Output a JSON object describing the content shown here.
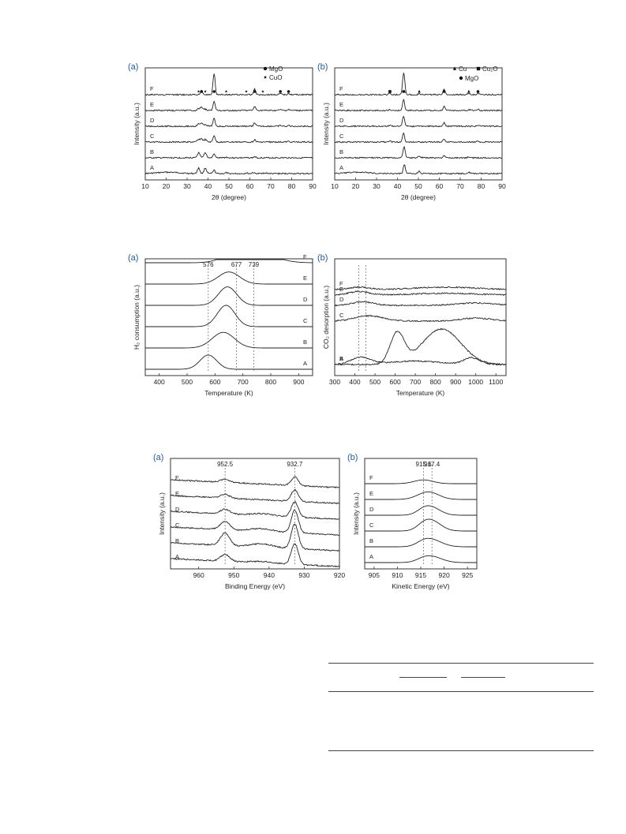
{
  "figures": [
    {
      "panels": [
        {
          "id": "xrd-a",
          "letter": "(a)",
          "legend": [
            {
              "marker": "circle",
              "label": "MgO"
            },
            {
              "marker": "star",
              "label": "CuO"
            }
          ],
          "peak_annotations": [
            {
              "x": 36.9,
              "marker": "circle"
            },
            {
              "x": 42.9,
              "marker": "circle"
            },
            {
              "x": 62.3,
              "marker": "circle"
            },
            {
              "x": 74.6,
              "marker": "circle"
            },
            {
              "x": 78.5,
              "marker": "circle"
            },
            {
              "x": 35.5,
              "marker": "star"
            },
            {
              "x": 38.7,
              "marker": "star"
            },
            {
              "x": 48.7,
              "marker": "star"
            },
            {
              "x": 58.3,
              "marker": "star"
            },
            {
              "x": 66.2,
              "marker": "star"
            }
          ],
          "vlines": [],
          "curve_labels_side": "left"
        },
        {
          "id": "xrd-b",
          "letter": "(b)",
          "legend": [
            {
              "marker": "triangle",
              "label": "Cu"
            },
            {
              "marker": "square",
              "label": "Cu₂O"
            },
            {
              "marker": "circle",
              "label": "MgO"
            }
          ],
          "peak_annotations": [
            {
              "x": 36.4,
              "marker": "square"
            },
            {
              "x": 42.9,
              "marker": "circle"
            },
            {
              "x": 43.3,
              "marker": "triangle"
            },
            {
              "x": 50.4,
              "marker": "triangle"
            },
            {
              "x": 62.3,
              "marker": "circle"
            },
            {
              "x": 74.1,
              "marker": "triangle"
            },
            {
              "x": 78.5,
              "marker": "circle"
            }
          ],
          "vlines": [],
          "curve_labels_side": "left"
        },
        {
          "id": "tpr",
          "letter": "(a)",
          "legend": [],
          "peak_annotations": [],
          "vlines": [
            {
              "x": 576,
              "label": "576"
            },
            {
              "x": 677,
              "label": "677"
            },
            {
              "x": 739,
              "label": "739"
            }
          ],
          "curve_labels_side": "right"
        },
        {
          "id": "co2-tpd",
          "letter": "(b)",
          "legend": [],
          "peak_annotations": [],
          "vlines": [
            {
              "x": 420,
              "label": ""
            },
            {
              "x": 455,
              "label": ""
            }
          ],
          "curve_labels_side": "left"
        },
        {
          "id": "xps",
          "letter": "(a)",
          "legend": [],
          "peak_annotations": [],
          "vlines": [
            {
              "x": 952.5,
              "label": "952.5"
            },
            {
              "x": 932.7,
              "label": "932.7"
            }
          ],
          "curve_labels_side": "left"
        },
        {
          "id": "aes",
          "letter": "(b)",
          "legend": [],
          "peak_annotations": [],
          "vlines": [
            {
              "x": 915.6,
              "label": "915.6"
            },
            {
              "x": 917.4,
              "label": "917.4"
            }
          ],
          "curve_labels_side": "left"
        }
      ]
    }
  ],
  "chart_data": [
    {
      "id": "xrd-a",
      "type": "line",
      "xlabel": "2θ (degree)",
      "ylabel": "Intensity (a.u.)",
      "xlim": [
        10,
        90
      ],
      "xticks": [
        10,
        20,
        30,
        40,
        50,
        60,
        70,
        80,
        90
      ],
      "series": [
        {
          "name": "A",
          "peaks": [
            [
              21,
              0.25,
              5
            ],
            [
              35.5,
              1.0,
              0.6
            ],
            [
              38.7,
              1.0,
              0.6
            ],
            [
              42.9,
              0.6,
              0.5
            ],
            [
              48.7,
              0.15,
              0.5
            ],
            [
              58.3,
              0.12,
              0.5
            ],
            [
              61.5,
              0.2,
              0.5
            ],
            [
              66.2,
              0.12,
              0.5
            ],
            [
              68.1,
              0.1,
              0.5
            ]
          ]
        },
        {
          "name": "B",
          "peaks": [
            [
              35.5,
              0.9,
              0.6
            ],
            [
              38.7,
              0.9,
              0.6
            ],
            [
              42.9,
              0.7,
              0.5
            ],
            [
              48.7,
              0.12,
              0.5
            ],
            [
              62.3,
              0.2,
              0.5
            ]
          ]
        },
        {
          "name": "C",
          "peaks": [
            [
              35.5,
              0.5,
              0.6
            ],
            [
              36.9,
              0.6,
              0.5
            ],
            [
              38.7,
              0.45,
              0.6
            ],
            [
              42.9,
              1.2,
              0.5
            ],
            [
              62.3,
              0.45,
              0.5
            ],
            [
              78.5,
              0.12,
              0.5
            ]
          ]
        },
        {
          "name": "D",
          "peaks": [
            [
              35.5,
              0.4,
              0.6
            ],
            [
              36.9,
              0.6,
              0.5
            ],
            [
              38.7,
              0.35,
              0.6
            ],
            [
              42.9,
              1.4,
              0.5
            ],
            [
              62.3,
              0.6,
              0.5
            ],
            [
              74.6,
              0.12,
              0.5
            ],
            [
              78.5,
              0.15,
              0.5
            ]
          ]
        },
        {
          "name": "E",
          "peaks": [
            [
              35.5,
              0.3,
              0.6
            ],
            [
              36.9,
              0.7,
              0.5
            ],
            [
              38.7,
              0.25,
              0.6
            ],
            [
              42.9,
              1.6,
              0.5
            ],
            [
              62.3,
              0.7,
              0.5
            ],
            [
              74.6,
              0.15,
              0.5
            ],
            [
              78.5,
              0.18,
              0.5
            ]
          ]
        },
        {
          "name": "F",
          "peaks": [
            [
              36.9,
              0.8,
              0.5
            ],
            [
              42.9,
              3.9,
              0.5
            ],
            [
              62.3,
              1.1,
              0.5
            ],
            [
              74.6,
              0.2,
              0.5
            ],
            [
              78.5,
              0.25,
              0.5
            ]
          ]
        }
      ]
    },
    {
      "id": "xrd-b",
      "type": "line",
      "xlabel": "2θ (degree)",
      "ylabel": "Intensity (a.u.)",
      "xlim": [
        10,
        90
      ],
      "xticks": [
        10,
        20,
        30,
        40,
        50,
        60,
        70,
        80,
        90
      ],
      "series": [
        {
          "name": "A",
          "peaks": [
            [
              21,
              0.25,
              5
            ],
            [
              43.3,
              1.6,
              0.5
            ],
            [
              50.4,
              0.5,
              0.5
            ],
            [
              74.1,
              0.25,
              0.5
            ]
          ]
        },
        {
          "name": "B",
          "peaks": [
            [
              42.9,
              0.8,
              0.5
            ],
            [
              43.3,
              1.3,
              0.5
            ],
            [
              50.4,
              0.35,
              0.5
            ],
            [
              62.3,
              0.35,
              0.5
            ],
            [
              74.1,
              0.15,
              0.5
            ]
          ]
        },
        {
          "name": "C",
          "peaks": [
            [
              36.4,
              0.15,
              0.5
            ],
            [
              42.9,
              1.6,
              0.5
            ],
            [
              62.3,
              0.55,
              0.5
            ],
            [
              78.5,
              0.15,
              0.5
            ]
          ]
        },
        {
          "name": "D",
          "peaks": [
            [
              36.4,
              0.12,
              0.5
            ],
            [
              42.9,
              1.8,
              0.5
            ],
            [
              62.3,
              0.65,
              0.5
            ],
            [
              78.5,
              0.18,
              0.5
            ]
          ]
        },
        {
          "name": "E",
          "peaks": [
            [
              36.4,
              0.15,
              0.5
            ],
            [
              42.9,
              2.0,
              0.5
            ],
            [
              62.3,
              0.75,
              0.5
            ],
            [
              74.6,
              0.15,
              0.5
            ],
            [
              78.5,
              0.2,
              0.5
            ]
          ]
        },
        {
          "name": "F",
          "peaks": [
            [
              36.4,
              0.3,
              0.5
            ],
            [
              42.9,
              3.6,
              0.5
            ],
            [
              43.5,
              0.8,
              0.4
            ],
            [
              50.4,
              0.2,
              0.5
            ],
            [
              62.3,
              1.1,
              0.5
            ],
            [
              74.1,
              0.25,
              0.5
            ],
            [
              78.5,
              0.3,
              0.5
            ]
          ]
        }
      ]
    },
    {
      "id": "tpr",
      "type": "line",
      "xlabel": "Temperature (K)",
      "ylabel": "H₂ consumption (a.u.)",
      "xlim": [
        350,
        950
      ],
      "xticks": [
        400,
        500,
        600,
        700,
        800,
        900
      ],
      "series": [
        {
          "name": "A",
          "peaks": [
            [
              576,
              1.0,
              30
            ]
          ]
        },
        {
          "name": "B",
          "peaks": [
            [
              630,
              1.1,
              40
            ]
          ]
        },
        {
          "name": "C",
          "peaks": [
            [
              640,
              1.5,
              32
            ]
          ]
        },
        {
          "name": "D",
          "peaks": [
            [
              645,
              1.3,
              33
            ]
          ]
        },
        {
          "name": "E",
          "peaks": [
            [
              650,
              0.85,
              38
            ]
          ]
        },
        {
          "name": "F",
          "peaks": [
            [
              677,
              0.45,
              45
            ],
            [
              739,
              0.9,
              65
            ]
          ]
        }
      ]
    },
    {
      "id": "co2-tpd",
      "type": "line",
      "xlabel": "Temperature (K)",
      "ylabel": "CO₂ desorption (a.u.)",
      "xlim": [
        300,
        1150
      ],
      "xticks": [
        300,
        400,
        500,
        600,
        700,
        800,
        900,
        1000,
        1100
      ],
      "series": [
        {
          "name": "A",
          "peaks": [
            [
              610,
              2.6,
              35
            ],
            [
              830,
              3.0,
              95
            ]
          ]
        },
        {
          "name": "B",
          "peaks": [
            [
              430,
              0.6,
              50
            ],
            [
              700,
              0.3,
              120
            ],
            [
              980,
              0.55,
              40
            ]
          ]
        },
        {
          "name": "C",
          "peaks": [
            [
              470,
              0.45,
              70
            ],
            [
              1000,
              0.25,
              80
            ]
          ]
        },
        {
          "name": "D",
          "peaks": [
            [
              440,
              0.3,
              50
            ],
            [
              1000,
              0.2,
              90
            ]
          ]
        },
        {
          "name": "E",
          "peaks": [
            [
              420,
              0.3,
              50
            ],
            [
              850,
              0.15,
              150
            ]
          ]
        },
        {
          "name": "F",
          "peaks": [
            [
              420,
              0.2,
              50
            ],
            [
              850,
              0.2,
              150
            ]
          ]
        }
      ]
    },
    {
      "id": "xps",
      "type": "line",
      "xlabel": "Binding Energy (eV)",
      "ylabel": "Intensity (a.u.)",
      "xlim": [
        968,
        920
      ],
      "xticks": [
        960,
        950,
        940,
        930,
        920
      ],
      "series": [
        {
          "name": "A",
          "peaks": [
            [
              952.5,
              0.7,
              1.3
            ],
            [
              932.7,
              2.2,
              1.0
            ],
            [
              942,
              0.15,
              3
            ]
          ]
        },
        {
          "name": "B",
          "peaks": [
            [
              952.5,
              1.3,
              1.3
            ],
            [
              932.7,
              2.6,
              1.0
            ],
            [
              942,
              0.35,
              3
            ]
          ]
        },
        {
          "name": "C",
          "peaks": [
            [
              952.5,
              0.9,
              1.3
            ],
            [
              932.7,
              2.4,
              1.0
            ],
            [
              942,
              0.3,
              3
            ]
          ]
        },
        {
          "name": "D",
          "peaks": [
            [
              952.5,
              0.5,
              1.3
            ],
            [
              932.7,
              1.6,
              1.0
            ],
            [
              942,
              0.2,
              3
            ]
          ]
        },
        {
          "name": "E",
          "peaks": [
            [
              952.5,
              0.4,
              1.3
            ],
            [
              932.7,
              1.2,
              1.0
            ]
          ]
        },
        {
          "name": "F",
          "peaks": [
            [
              952.5,
              0.3,
              1.3
            ],
            [
              932.7,
              0.9,
              1.0
            ]
          ]
        }
      ]
    },
    {
      "id": "aes",
      "type": "line",
      "xlabel": "Kinetic Energy (eV)",
      "ylabel": "Intensity (a.u.)",
      "xlim": [
        903,
        927
      ],
      "xticks": [
        905,
        910,
        915,
        920,
        925
      ],
      "series": [
        {
          "name": "A",
          "peaks": [
            [
              917.4,
              0.6,
              2.2
            ],
            [
              915.6,
              0.2,
              1.5
            ]
          ]
        },
        {
          "name": "B",
          "peaks": [
            [
              917.4,
              0.7,
              2.2
            ],
            [
              915.6,
              0.3,
              1.5
            ]
          ]
        },
        {
          "name": "C",
          "peaks": [
            [
              917.4,
              1.0,
              2.0
            ],
            [
              915.6,
              0.4,
              1.5
            ]
          ]
        },
        {
          "name": "D",
          "peaks": [
            [
              917.2,
              0.8,
              2.0
            ],
            [
              915.6,
              0.3,
              1.5
            ]
          ]
        },
        {
          "name": "E",
          "peaks": [
            [
              916.6,
              0.8,
              2.2
            ]
          ]
        },
        {
          "name": "F",
          "peaks": [
            [
              915.6,
              0.4,
              2.0
            ]
          ]
        }
      ]
    }
  ]
}
